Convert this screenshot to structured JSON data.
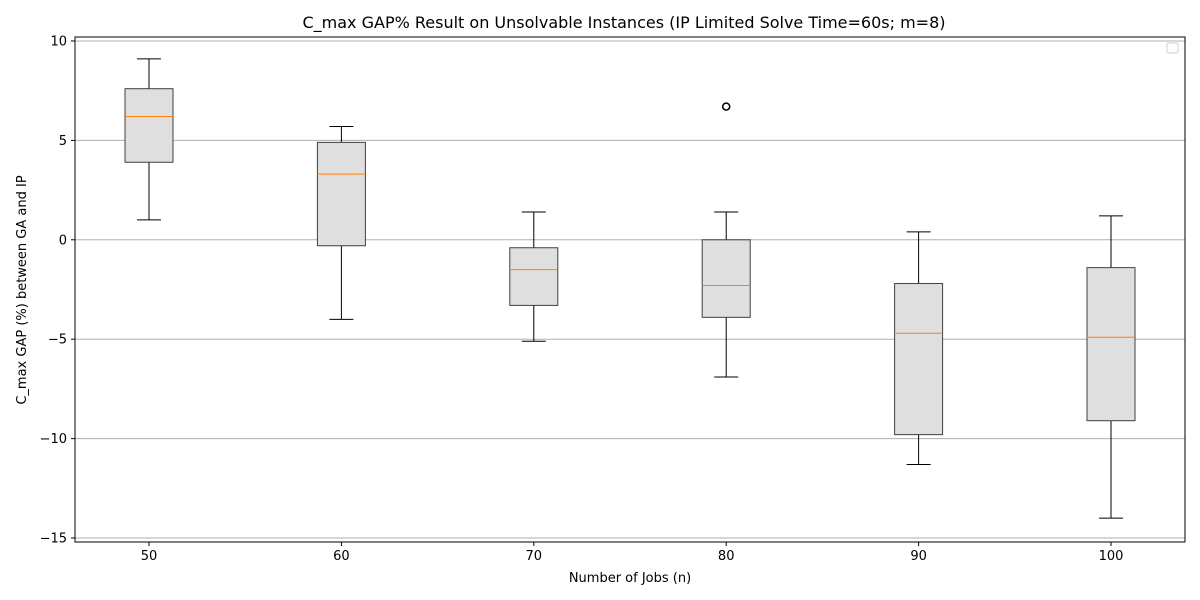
{
  "chart_data": {
    "type": "box",
    "title": "C_max GAP% Result on Unsolvable Instances (IP Limited Solve Time=60s; m=8)",
    "xlabel": "Number of Jobs (n)",
    "ylabel": "C_max GAP (%) between GA and IP",
    "categories": [
      "50",
      "60",
      "70",
      "80",
      "90",
      "100"
    ],
    "ylim": [
      -15.2,
      10.2
    ],
    "yticks": [
      10,
      5,
      0,
      -5,
      -10,
      -15
    ],
    "ytick_labels": [
      "10",
      "5",
      "0",
      "−5",
      "−10",
      "−15"
    ],
    "grid": "horizontal",
    "legend": "top-right (empty)",
    "boxes": [
      {
        "category": "50",
        "whisker_low": 1.0,
        "q1": 3.9,
        "median": 6.2,
        "q3": 7.6,
        "whisker_high": 9.1,
        "outliers": []
      },
      {
        "category": "60",
        "whisker_low": -4.0,
        "q1": -0.3,
        "median": 3.3,
        "q3": 4.9,
        "whisker_high": 5.7,
        "outliers": []
      },
      {
        "category": "70",
        "whisker_low": -5.1,
        "q1": -3.3,
        "median": -1.5,
        "q3": -0.4,
        "whisker_high": 1.4,
        "outliers": []
      },
      {
        "category": "80",
        "whisker_low": -6.9,
        "q1": -3.9,
        "median": -2.3,
        "q3": 0.0,
        "whisker_high": 1.4,
        "outliers": [
          6.7
        ]
      },
      {
        "category": "90",
        "whisker_low": -11.3,
        "q1": -9.8,
        "median": -4.7,
        "q3": -2.2,
        "whisker_high": 0.4,
        "outliers": []
      },
      {
        "category": "100",
        "whisker_low": -14.0,
        "q1": -9.1,
        "median": -4.9,
        "q3": -1.4,
        "whisker_high": 1.2,
        "outliers": []
      }
    ],
    "colors": {
      "box_fill": "#dfdfdf",
      "box_edge": "#3f3f3f",
      "median": "#ff7f0e",
      "whisker": "#000000",
      "grid": "#b0b0b0"
    }
  }
}
